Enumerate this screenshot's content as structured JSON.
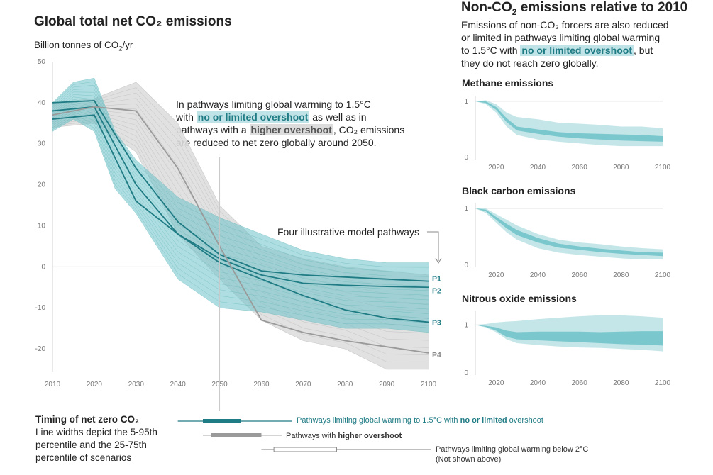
{
  "left": {
    "title": "Global total net CO₂ emissions",
    "ylabel_prefix": "Billion tonnes of CO",
    "ylabel_sub": "2",
    "ylabel_suffix": "/yr",
    "note": {
      "l1": "In pathways limiting global warming to 1.5°C",
      "l2_pre": "with ",
      "l2_hl": "no or limited overshoot",
      "l2_post": " as well as in",
      "l3_pre": "pathways with a ",
      "l3_hl": "higher overshoot",
      "l3_post": ", CO₂ emissions",
      "l4": "are reduced to net zero globally around 2050."
    },
    "pathways_label": "Four illustrative model pathways"
  },
  "right": {
    "title_pre": "Non-CO",
    "title_sub": "2",
    "title_post": " emissions relative to 2010",
    "desc_l1": "Emissions of non-CO₂ forcers are also reduced",
    "desc_l2": "or limited in pathways limiting global warming",
    "desc_l3_pre": "to 1.5°C with ",
    "desc_l3_hl": "no or limited overshoot",
    "desc_l3_post": ", but",
    "desc_l4": "they do not reach zero globally."
  },
  "timing": {
    "title": "Timing of net zero CO₂",
    "l1": "Line widths depict the 5-95th",
    "l2": "percentile and the 25-75th",
    "l3": "percentile of scenarios",
    "legend1_pre": "Pathways limiting global warming to 1.5°C with ",
    "legend1_bold": "no or limited",
    "legend1_post": " overshoot",
    "legend2_pre": "Pathways with ",
    "legend2_bold": "higher overshoot",
    "legend3_l1": "Pathways limiting global warming below 2°C",
    "legend3_l2": "(Not shown above)"
  },
  "colors": {
    "teal": "#1f7b84",
    "teal_band_light": "#bfe3e6",
    "teal_band_dark": "#6cc2c8",
    "grey_band": "#dedede",
    "grey_line": "#9a9a9a"
  },
  "chart_data": [
    {
      "type": "area",
      "title": "Global total net CO₂ emissions",
      "ylabel": "Billion tonnes of CO2/yr",
      "xlim": [
        2010,
        2100
      ],
      "ylim": [
        -25,
        50
      ],
      "x_ticks": [
        2010,
        2020,
        2030,
        2040,
        2050,
        2060,
        2070,
        2080,
        2090,
        2100
      ],
      "y_ticks": [
        50,
        40,
        30,
        20,
        10,
        0,
        -10,
        -20
      ],
      "grey_band": {
        "name": "Pathways with higher overshoot",
        "x": [
          2010,
          2020,
          2030,
          2040,
          2050,
          2060,
          2070,
          2080,
          2090,
          2100
        ],
        "upper": [
          40,
          41,
          45,
          35,
          15,
          5,
          2,
          0,
          -1,
          -2
        ],
        "lower": [
          34,
          35,
          28,
          8,
          -3,
          -13,
          -18,
          -20,
          -25,
          -25
        ]
      },
      "teal_band": {
        "name": "Pathways limiting global warming to 1.5°C with no or limited overshoot",
        "x": [
          2010,
          2015,
          2020,
          2025,
          2030,
          2040,
          2050,
          2060,
          2070,
          2080,
          2090,
          2100
        ],
        "upper": [
          40,
          45,
          46,
          33,
          26,
          17,
          12,
          8,
          4,
          2,
          1,
          1
        ],
        "lower": [
          33,
          36,
          33,
          19,
          13,
          -3,
          -10,
          -11,
          -13,
          -15,
          -15,
          -16
        ]
      },
      "series": [
        {
          "name": "P1",
          "x": [
            2010,
            2020,
            2030,
            2040,
            2050,
            2060,
            2070,
            2080,
            2090,
            2100
          ],
          "values": [
            40,
            40.5,
            24,
            11,
            3,
            -1,
            -2,
            -2.5,
            -3,
            -3.5
          ]
        },
        {
          "name": "P2",
          "x": [
            2010,
            2020,
            2030,
            2040,
            2050,
            2060,
            2070,
            2080,
            2090,
            2100
          ],
          "values": [
            38,
            39,
            20,
            8,
            2,
            -2,
            -4,
            -4.5,
            -4.8,
            -5
          ]
        },
        {
          "name": "P3",
          "x": [
            2010,
            2020,
            2030,
            2040,
            2050,
            2060,
            2070,
            2080,
            2090,
            2100
          ],
          "values": [
            36,
            37,
            16,
            8,
            1,
            -3,
            -7,
            -10.5,
            -12.5,
            -13.5
          ]
        },
        {
          "name": "P4",
          "x": [
            2010,
            2020,
            2030,
            2040,
            2050,
            2060,
            2070,
            2080,
            2090,
            2100
          ],
          "values": [
            37,
            39,
            38,
            24,
            5,
            -13,
            -16,
            -18,
            -19.5,
            -21
          ]
        }
      ]
    },
    {
      "type": "area",
      "title": "Methane emissions",
      "xlim": [
        2010,
        2100
      ],
      "ylim": [
        0,
        1.1
      ],
      "x_ticks": [
        2020,
        2040,
        2060,
        2080,
        2100
      ],
      "y_ticks": [
        1,
        0
      ],
      "x": [
        2010,
        2015,
        2020,
        2025,
        2030,
        2040,
        2050,
        2060,
        2070,
        2080,
        2090,
        2100
      ],
      "outer_upper": [
        1,
        1.02,
        0.95,
        0.8,
        0.72,
        0.68,
        0.62,
        0.6,
        0.58,
        0.55,
        0.55,
        0.52
      ],
      "outer_lower": [
        1,
        0.95,
        0.8,
        0.55,
        0.4,
        0.32,
        0.28,
        0.25,
        0.22,
        0.2,
        0.2,
        0.2
      ],
      "inner_upper": [
        1,
        1,
        0.9,
        0.7,
        0.55,
        0.5,
        0.45,
        0.43,
        0.42,
        0.41,
        0.4,
        0.38
      ],
      "inner_lower": [
        1,
        0.97,
        0.85,
        0.63,
        0.48,
        0.42,
        0.37,
        0.34,
        0.32,
        0.3,
        0.29,
        0.28
      ]
    },
    {
      "type": "area",
      "title": "Black carbon emissions",
      "xlim": [
        2010,
        2100
      ],
      "ylim": [
        0,
        1.1
      ],
      "x_ticks": [
        2020,
        2040,
        2060,
        2080,
        2100
      ],
      "y_ticks": [
        1,
        0
      ],
      "x": [
        2010,
        2015,
        2020,
        2025,
        2030,
        2040,
        2050,
        2060,
        2070,
        2080,
        2090,
        2100
      ],
      "outer_upper": [
        1,
        1,
        0.9,
        0.8,
        0.7,
        0.55,
        0.45,
        0.4,
        0.37,
        0.33,
        0.3,
        0.28
      ],
      "outer_lower": [
        1,
        0.92,
        0.75,
        0.58,
        0.45,
        0.3,
        0.22,
        0.18,
        0.15,
        0.12,
        0.1,
        0.1
      ],
      "inner_upper": [
        1,
        0.98,
        0.85,
        0.73,
        0.62,
        0.48,
        0.38,
        0.33,
        0.29,
        0.26,
        0.23,
        0.22
      ],
      "inner_lower": [
        1,
        0.95,
        0.8,
        0.65,
        0.53,
        0.4,
        0.31,
        0.27,
        0.23,
        0.2,
        0.18,
        0.16
      ]
    },
    {
      "type": "area",
      "title": "Nitrous oxide emissions",
      "xlim": [
        2010,
        2100
      ],
      "ylim": [
        0,
        1.3
      ],
      "x_ticks": [
        2020,
        2040,
        2060,
        2080,
        2100
      ],
      "y_ticks": [
        1,
        0
      ],
      "x": [
        2010,
        2015,
        2020,
        2025,
        2030,
        2040,
        2050,
        2060,
        2070,
        2080,
        2090,
        2100
      ],
      "outer_upper": [
        1,
        1.02,
        1.05,
        1.07,
        1.08,
        1.12,
        1.15,
        1.18,
        1.2,
        1.2,
        1.18,
        1.15
      ],
      "outer_lower": [
        1,
        0.95,
        0.85,
        0.7,
        0.62,
        0.58,
        0.55,
        0.53,
        0.52,
        0.5,
        0.48,
        0.45
      ],
      "inner_upper": [
        1,
        0.98,
        0.95,
        0.88,
        0.85,
        0.86,
        0.86,
        0.86,
        0.85,
        0.86,
        0.87,
        0.87
      ],
      "inner_lower": [
        1,
        0.96,
        0.88,
        0.75,
        0.7,
        0.68,
        0.66,
        0.64,
        0.62,
        0.6,
        0.59,
        0.57
      ]
    },
    {
      "type": "bar",
      "title": "Timing of net zero CO₂",
      "series": [
        {
          "name": "Pathways limiting global warming to 1.5°C with no or limited overshoot",
          "p5_95": [
            2040,
            2075
          ],
          "p25_75": [
            2046,
            2055
          ]
        },
        {
          "name": "Pathways with higher overshoot",
          "p5_95": [
            2046,
            2063
          ],
          "p25_75": [
            2048,
            2060
          ]
        },
        {
          "name": "Pathways limiting global warming below 2°C",
          "p5_95": [
            2060,
            2100
          ],
          "p25_75": [
            2063,
            2078
          ]
        }
      ]
    }
  ]
}
